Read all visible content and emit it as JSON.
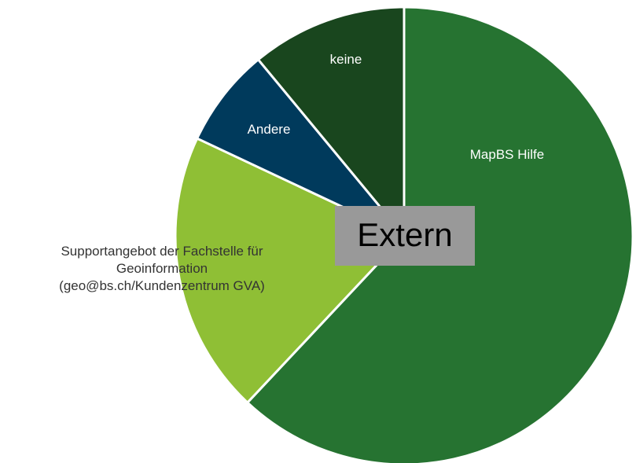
{
  "chart_data": {
    "type": "pie",
    "categories": [
      "MapBS Hilfe",
      "Supportangebot der Fachstelle für\nGeoinformation\n(geo@bs.ch/Kundenzentrum GVA)",
      "Andere",
      "keine"
    ],
    "values": [
      62,
      20,
      7,
      11
    ],
    "colors": [
      "#267331",
      "#8fbf35",
      "#003a5c",
      "#19461e"
    ],
    "annotation": "Extern"
  }
}
